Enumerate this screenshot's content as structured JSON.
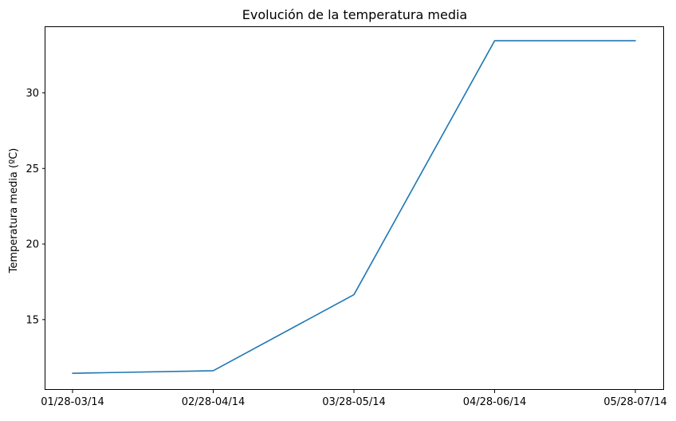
{
  "chart_data": {
    "type": "line",
    "title": "Evolución de la temperatura media",
    "xlabel": "",
    "ylabel": "Temperatura media (ºC)",
    "categories": [
      "01/28-03/14",
      "02/28-04/14",
      "03/28-05/14",
      "04/28-06/14",
      "05/28-07/14"
    ],
    "series": [
      {
        "values": [
          11.45,
          11.62,
          16.65,
          33.45,
          33.45
        ],
        "color": "#1f77b4"
      }
    ],
    "ylim": [
      10.35,
      34.35
    ],
    "yticks": [
      15,
      20,
      25,
      30
    ],
    "grid": false
  }
}
